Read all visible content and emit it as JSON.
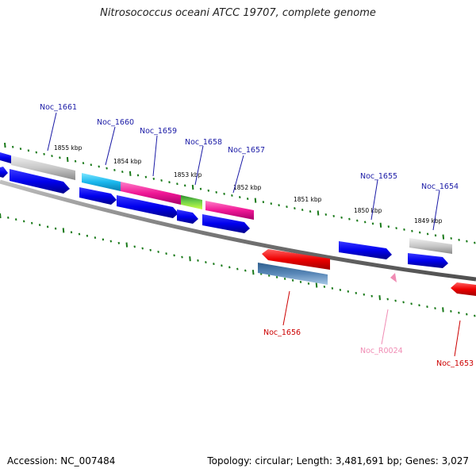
{
  "title": "Nitrosococcus oceani ATCC 19707, complete genome",
  "footer": {
    "accession": "Accession: NC_007484",
    "summary": "Topology: circular; Length: 3,481,691 bp; Genes: 3,027"
  },
  "colors": {
    "backbone": "#808080",
    "tick_green": "#1a7a1a",
    "cds_blue": "#0000ee",
    "label_blue": "#1a1aa6",
    "label_red": "#cc0000",
    "label_pink": "#f08cb4"
  },
  "scale_labels": [
    "1855 kbp",
    "1854 kbp",
    "1853 kbp",
    "1852 kbp",
    "1851 kbp",
    "1850 kbp",
    "1849 kbp"
  ],
  "gene_labels": [
    {
      "text": "Noc_1661",
      "color": "#1a1aa6"
    },
    {
      "text": "Noc_1660",
      "color": "#1a1aa6"
    },
    {
      "text": "Noc_1659",
      "color": "#1a1aa6"
    },
    {
      "text": "Noc_1658",
      "color": "#1a1aa6"
    },
    {
      "text": "Noc_1657",
      "color": "#1a1aa6"
    },
    {
      "text": "Noc_1655",
      "color": "#1a1aa6"
    },
    {
      "text": "Noc_1654",
      "color": "#1a1aa6"
    },
    {
      "text": "Noc_1656",
      "color": "#cc0000"
    },
    {
      "text": "Noc_R0024",
      "color": "#f08cb4"
    },
    {
      "text": "Noc_1653",
      "color": "#cc0000"
    }
  ]
}
